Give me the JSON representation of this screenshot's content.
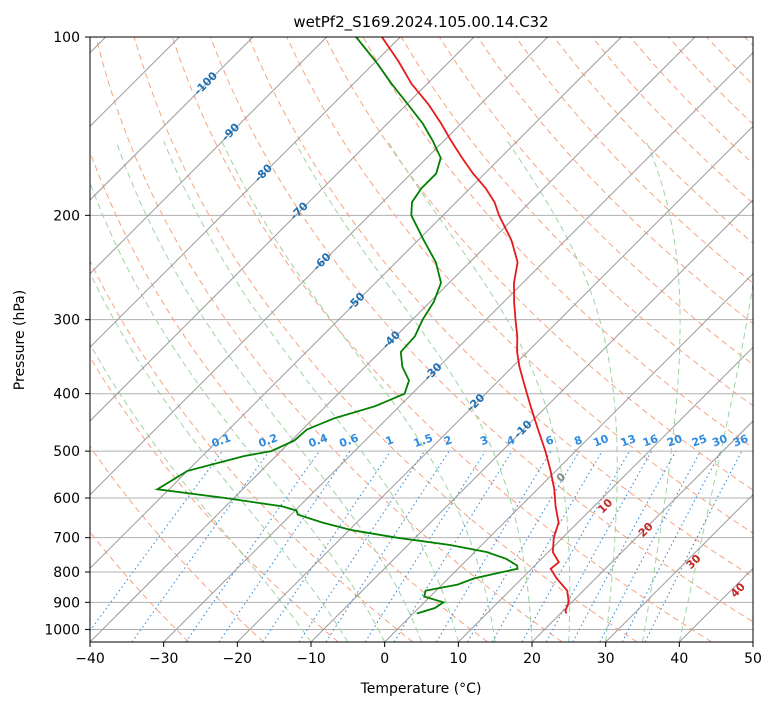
{
  "chart_data": {
    "type": "line",
    "chart_kind": "skew-t log-p",
    "title": "wetPf2_S169.2024.105.00.14.C32",
    "xlabel": "Temperature (°C)",
    "ylabel": "Pressure (hPa)",
    "xlim": [
      -40,
      50
    ],
    "ylim": [
      1050,
      100
    ],
    "y_scale": "log",
    "grid": true,
    "x_ticks": [
      "−40",
      "−30",
      "−20",
      "−10",
      "0",
      "10",
      "20",
      "30",
      "40",
      "50"
    ],
    "y_ticks": [
      "100",
      "200",
      "300",
      "400",
      "500",
      "600",
      "700",
      "800",
      "900",
      "1000"
    ],
    "skew_isotherm_labels": [
      "-100",
      "-90",
      "-80",
      "-70",
      "-60",
      "-50",
      "-40",
      "-30",
      "-20",
      "-10"
    ],
    "mixing_ratio_labels": [
      "0.1",
      "0.2",
      "0.4",
      "0.6",
      "1",
      "1.5",
      "2",
      "3",
      "4",
      "6",
      "8",
      "10",
      "13",
      "16",
      "20",
      "25",
      "30",
      "36"
    ],
    "isotherm_labels_upright": [
      "0",
      "10",
      "20",
      "30",
      "40"
    ],
    "series": [
      {
        "role": "temperature",
        "color": "#e41a1c",
        "p": [
          940,
          930,
          900,
          860,
          820,
          790,
          770,
          740,
          700,
          660,
          620,
          580,
          540,
          500,
          460,
          420,
          380,
          360,
          340,
          320,
          300,
          280,
          260,
          240,
          230,
          220,
          200,
          190,
          180,
          170,
          160,
          150,
          140,
          130,
          120,
          110,
          100
        ],
        "t": [
          20.8,
          20.3,
          19.6,
          17.8,
          14.7,
          12.6,
          12.8,
          10.6,
          8.8,
          7.4,
          4.8,
          2.3,
          -0.7,
          -4.1,
          -8.0,
          -12.2,
          -16.7,
          -19.1,
          -21.4,
          -23.5,
          -26.0,
          -28.6,
          -31.2,
          -33.5,
          -35.4,
          -37.4,
          -42.4,
          -44.8,
          -47.9,
          -51.6,
          -55.2,
          -58.9,
          -62.7,
          -67.0,
          -72.1,
          -76.9,
          -82.5
        ]
      },
      {
        "role": "dewpoint",
        "color": "#008000",
        "p": [
          940,
          920,
          900,
          880,
          860,
          840,
          820,
          800,
          790,
          780,
          760,
          740,
          720,
          700,
          680,
          660,
          640,
          630,
          620,
          600,
          580,
          540,
          510,
          500,
          480,
          460,
          440,
          420,
          400,
          380,
          360,
          340,
          320,
          300,
          280,
          260,
          240,
          220,
          200,
          190,
          180,
          170,
          160,
          150,
          140,
          130,
          120,
          110,
          100
        ],
        "t": [
          0.5,
          2.2,
          2.6,
          -0.8,
          -1.4,
          2.1,
          3.5,
          6.5,
          8.1,
          7.6,
          5.2,
          1.6,
          -4.4,
          -12.5,
          -19.6,
          -24.7,
          -29.1,
          -29.8,
          -32.3,
          -41.2,
          -51.6,
          -50.0,
          -44.4,
          -41.3,
          -39.6,
          -39.4,
          -37.2,
          -33.3,
          -31.0,
          -32.2,
          -35.0,
          -37.2,
          -37.4,
          -38.6,
          -39.5,
          -41.1,
          -44.6,
          -49.3,
          -54.3,
          -56.0,
          -56.6,
          -56.6,
          -58.1,
          -61.4,
          -65.2,
          -69.8,
          -74.8,
          -80.0,
          -86.0
        ]
      }
    ]
  }
}
